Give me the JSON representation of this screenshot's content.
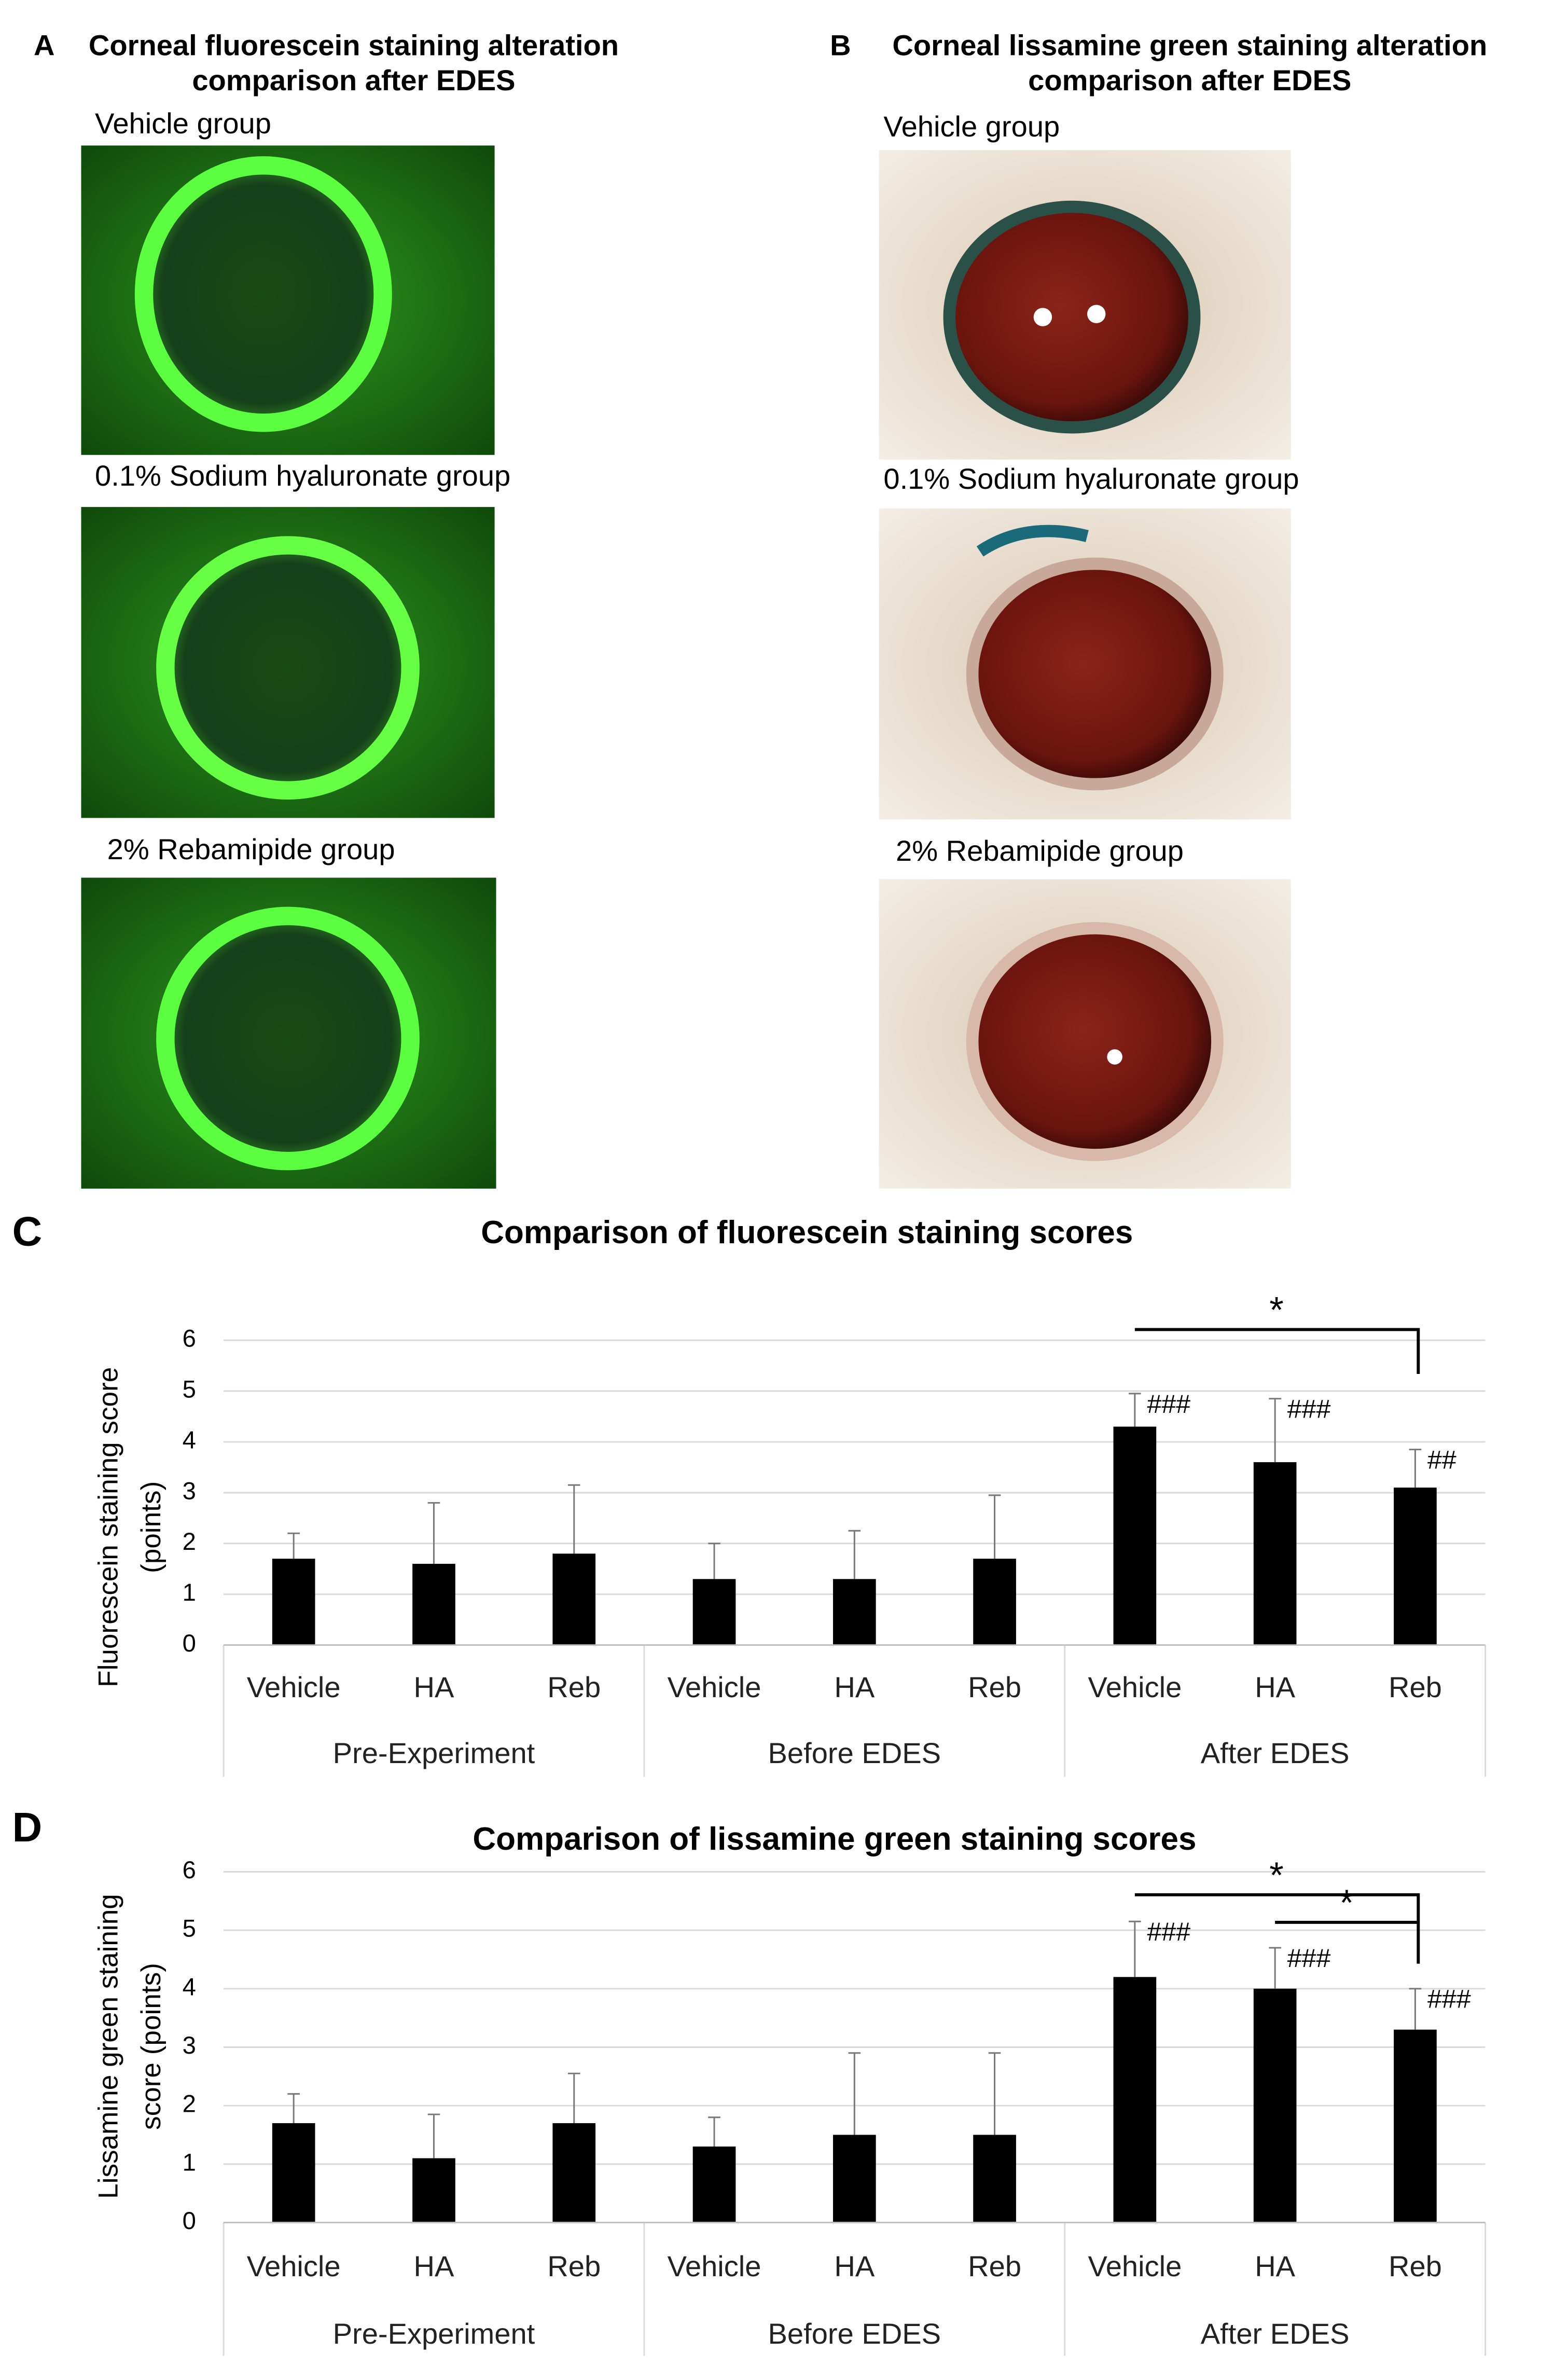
{
  "photo_panels": [
    {
      "letter": "A",
      "title": [
        "Corneal fluorescein staining alteration",
        "comparison after EDES"
      ],
      "captions": [
        "Vehicle group",
        "0.1% Sodium hyaluronate group",
        "2% Rebamipide group"
      ]
    },
    {
      "letter": "B",
      "title": [
        "Corneal lissamine green staining alteration",
        "comparison after EDES"
      ],
      "captions": [
        "Vehicle group",
        "0.1% Sodium hyaluronate group",
        "2% Rebamipide  group"
      ]
    }
  ],
  "chart_data": [
    {
      "type": "bar",
      "panel": "C",
      "title": "Comparison of fluorescein staining scores",
      "ylabel": [
        "Fluorescein staining score",
        "(points)"
      ],
      "categories": [
        "Vehicle",
        "HA",
        "Reb",
        "Vehicle",
        "HA",
        "Reb",
        "Vehicle",
        "HA",
        "Reb"
      ],
      "groups": [
        "Pre-Experiment",
        "Before EDES",
        "After EDES"
      ],
      "series": [
        {
          "color": "#000000",
          "values": [
            1.7,
            1.6,
            1.8,
            1.3,
            1.3,
            1.7,
            4.3,
            3.6,
            3.1
          ],
          "errors": [
            0.5,
            1.2,
            1.35,
            0.7,
            0.95,
            1.25,
            0.65,
            1.25,
            0.75
          ],
          "significance": [
            null,
            null,
            null,
            null,
            null,
            null,
            "###",
            "###",
            "##"
          ]
        }
      ],
      "comparisons": [
        {
          "label": "*",
          "between": [
            6,
            8
          ]
        }
      ],
      "ylim": [
        0,
        6
      ],
      "yticks": [
        0,
        1,
        2,
        3,
        4,
        5,
        6
      ],
      "grid": true
    },
    {
      "type": "bar",
      "panel": "D",
      "title": "Comparison of lissamine green staining scores",
      "ylabel": [
        "Lissamine green staining",
        "score (points)"
      ],
      "categories": [
        "Vehicle",
        "HA",
        "Reb",
        "Vehicle",
        "HA",
        "Reb",
        "Vehicle",
        "HA",
        "Reb"
      ],
      "groups": [
        "Pre-Experiment",
        "Before EDES",
        "After EDES"
      ],
      "series": [
        {
          "color": "#000000",
          "values": [
            1.7,
            1.1,
            1.7,
            1.3,
            1.5,
            1.5,
            4.2,
            4.0,
            3.3
          ],
          "errors": [
            0.5,
            0.75,
            0.85,
            0.5,
            1.4,
            1.4,
            0.95,
            0.7,
            0.7
          ],
          "significance": [
            null,
            null,
            null,
            null,
            null,
            null,
            "###",
            "###",
            "###"
          ]
        }
      ],
      "comparisons": [
        {
          "label": "*",
          "between": [
            6,
            8
          ]
        },
        {
          "label": "*",
          "between": [
            7,
            8
          ]
        }
      ],
      "ylim": [
        0,
        6
      ],
      "yticks": [
        0,
        1,
        2,
        3,
        4,
        5,
        6
      ],
      "grid": true
    }
  ]
}
